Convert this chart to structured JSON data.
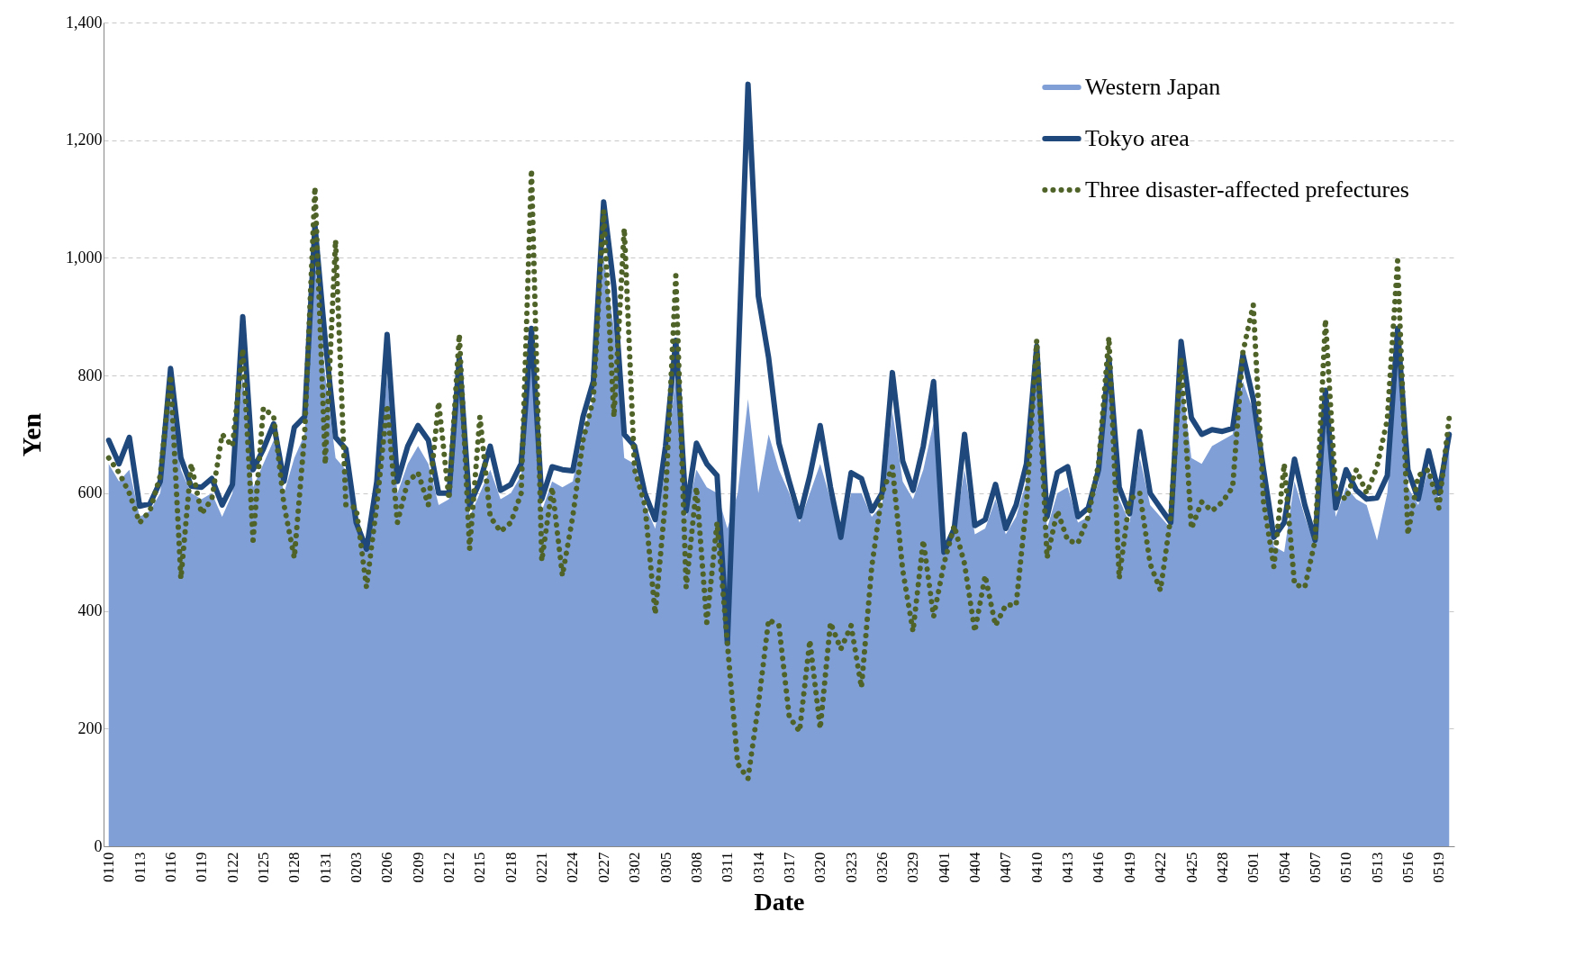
{
  "chart_data": {
    "type": "line",
    "xlabel": "Date",
    "ylabel": "Yen",
    "categories": [
      "0110",
      null,
      null,
      "0113",
      null,
      null,
      "0116",
      null,
      null,
      "0119",
      null,
      null,
      "0122",
      null,
      null,
      "0125",
      null,
      null,
      "0128",
      null,
      null,
      "0131",
      null,
      null,
      "0203",
      null,
      null,
      "0206",
      null,
      null,
      "0209",
      null,
      null,
      "0212",
      null,
      null,
      "0215",
      null,
      null,
      "0218",
      null,
      null,
      "0221",
      null,
      null,
      "0224",
      null,
      null,
      "0227",
      null,
      null,
      "0302",
      null,
      null,
      "0305",
      null,
      null,
      "0308",
      null,
      null,
      "0311",
      null,
      null,
      "0314",
      null,
      null,
      "0317",
      null,
      null,
      "0320",
      null,
      null,
      "0323",
      null,
      null,
      "0326",
      null,
      null,
      "0329",
      null,
      null,
      "0401",
      null,
      null,
      "0404",
      null,
      null,
      "0407",
      null,
      null,
      "0410",
      null,
      null,
      "0413",
      null,
      null,
      "0416",
      null,
      null,
      "0419",
      null,
      null,
      "0422",
      null,
      null,
      "0425",
      null,
      null,
      "0428",
      null,
      null,
      "0501",
      null,
      null,
      "0504",
      null,
      null,
      "0507",
      null,
      null,
      "0510",
      null,
      null,
      "0513",
      null,
      null,
      "0516",
      null,
      null,
      "0519",
      null
    ],
    "series": [
      {
        "name": "Western Japan",
        "type": "area",
        "color": "#7f9fd6",
        "values": [
          650,
          620,
          640,
          560,
          570,
          600,
          760,
          640,
          600,
          590,
          600,
          560,
          600,
          800,
          610,
          650,
          690,
          600,
          660,
          700,
          1000,
          800,
          660,
          640,
          540,
          500,
          600,
          800,
          600,
          650,
          680,
          650,
          580,
          590,
          780,
          560,
          600,
          640,
          590,
          600,
          630,
          820,
          570,
          620,
          610,
          620,
          700,
          760,
          1000,
          880,
          660,
          650,
          580,
          540,
          640,
          800,
          560,
          640,
          610,
          600,
          540,
          600,
          760,
          600,
          700,
          640,
          600,
          550,
          600,
          650,
          590,
          520,
          600,
          600,
          560,
          580,
          740,
          620,
          590,
          640,
          720,
          500,
          530,
          640,
          530,
          540,
          590,
          530,
          560,
          620,
          800,
          540,
          600,
          610,
          550,
          560,
          620,
          780,
          590,
          550,
          660,
          580,
          560,
          540,
          800,
          660,
          650,
          680,
          690,
          700,
          790,
          740,
          610,
          510,
          500,
          620,
          560,
          510,
          720,
          560,
          610,
          590,
          580,
          520,
          600,
          820,
          610,
          580,
          640,
          590,
          680
        ]
      },
      {
        "name": "Tokyo area",
        "color": "#1f497d",
        "line_style": "solid",
        "values": [
          690,
          650,
          695,
          578,
          582,
          620,
          812,
          660,
          612,
          610,
          625,
          580,
          615,
          900,
          640,
          675,
          718,
          620,
          712,
          730,
          1055,
          860,
          695,
          675,
          550,
          505,
          620,
          870,
          620,
          680,
          715,
          690,
          600,
          600,
          830,
          580,
          620,
          680,
          605,
          615,
          650,
          880,
          590,
          645,
          640,
          638,
          730,
          790,
          1095,
          950,
          700,
          680,
          600,
          555,
          680,
          860,
          570,
          685,
          650,
          630,
          345,
          800,
          1295,
          935,
          830,
          685,
          620,
          560,
          630,
          715,
          610,
          525,
          635,
          625,
          570,
          600,
          805,
          655,
          605,
          680,
          790,
          500,
          540,
          700,
          545,
          555,
          615,
          540,
          580,
          650,
          850,
          560,
          635,
          645,
          560,
          575,
          640,
          830,
          610,
          565,
          705,
          600,
          575,
          550,
          858,
          728,
          700,
          708,
          705,
          710,
          835,
          760,
          640,
          525,
          550,
          658,
          580,
          520,
          775,
          575,
          640,
          605,
          590,
          592,
          630,
          880,
          640,
          590,
          672,
          600,
          700
        ]
      },
      {
        "name": "Three disaster-affected prefectures",
        "color": "#4f6228",
        "line_style": "dotted",
        "values": [
          660,
          635,
          600,
          550,
          570,
          630,
          800,
          455,
          650,
          565,
          590,
          700,
          680,
          845,
          520,
          745,
          730,
          580,
          490,
          700,
          1120,
          650,
          1030,
          580,
          575,
          440,
          580,
          750,
          550,
          620,
          635,
          580,
          755,
          590,
          870,
          505,
          730,
          560,
          535,
          550,
          600,
          1150,
          485,
          610,
          460,
          560,
          690,
          760,
          1080,
          730,
          1050,
          640,
          580,
          395,
          590,
          970,
          440,
          610,
          380,
          550,
          345,
          140,
          115,
          240,
          385,
          375,
          220,
          195,
          350,
          200,
          380,
          335,
          375,
          270,
          475,
          600,
          645,
          470,
          365,
          520,
          390,
          480,
          545,
          480,
          365,
          460,
          375,
          410,
          410,
          580,
          860,
          490,
          570,
          520,
          515,
          560,
          650,
          865,
          455,
          590,
          600,
          480,
          435,
          560,
          830,
          540,
          585,
          570,
          585,
          610,
          840,
          920,
          585,
          475,
          650,
          445,
          440,
          520,
          895,
          600,
          590,
          640,
          600,
          645,
          725,
          995,
          530,
          630,
          640,
          575,
          728
        ]
      }
    ],
    "ylim": [
      0,
      1400
    ],
    "yticks": [
      0,
      200,
      400,
      600,
      800,
      {
        "value": 1000,
        "label": "1,000"
      },
      {
        "value": 1200,
        "label": "1,200"
      },
      {
        "value": 1400,
        "label": "1,400"
      }
    ],
    "grid": "y",
    "legend": "top right",
    "marker": "none"
  }
}
